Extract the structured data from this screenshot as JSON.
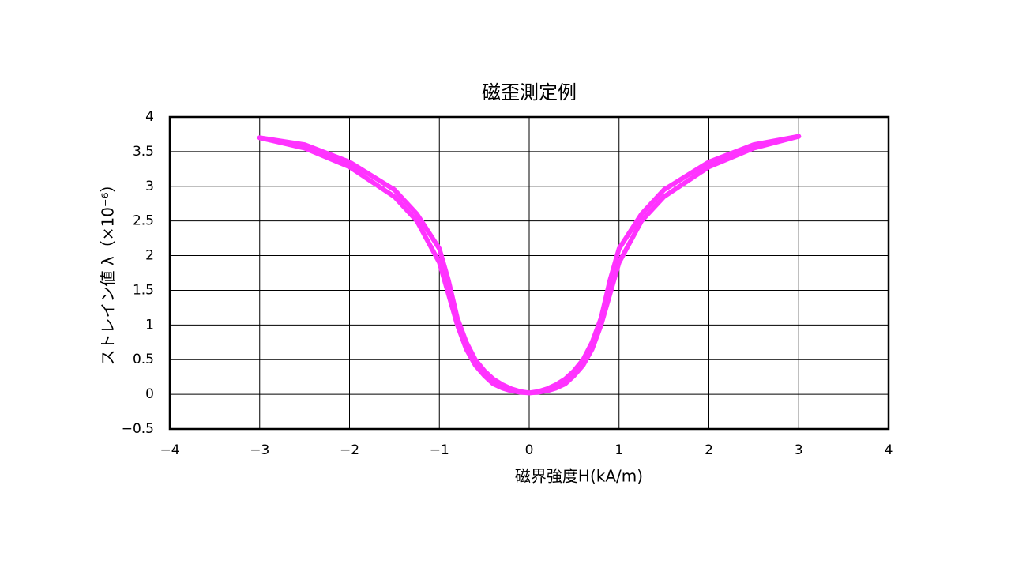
{
  "chart_data": {
    "type": "line",
    "title": "磁歪測定例",
    "x_label": "磁界強度H(kA/m)",
    "y_label": "ストレイン値 λ（×10⁻⁶）",
    "x": [
      -3,
      -2.5,
      -2,
      -1.5,
      -1.25,
      -1,
      -0.9,
      -0.8,
      -0.7,
      -0.6,
      -0.5,
      -0.4,
      -0.3,
      -0.2,
      -0.1,
      0,
      0.1,
      0.2,
      0.3,
      0.4,
      0.5,
      0.6,
      0.7,
      0.8,
      0.9,
      1,
      1.25,
      1.5,
      2,
      2.5,
      3
    ],
    "series": [
      {
        "color": "#ff33ff",
        "values": [
          3.7,
          3.55,
          3.28,
          2.85,
          2.5,
          1.9,
          1.45,
          1.0,
          0.65,
          0.42,
          0.27,
          0.15,
          0.09,
          0.05,
          0.03,
          0.02,
          0.04,
          0.08,
          0.14,
          0.22,
          0.34,
          0.5,
          0.75,
          1.1,
          1.65,
          2.1,
          2.6,
          2.95,
          3.35,
          3.6,
          3.72
        ]
      },
      {
        "color": "#ff33ff",
        "values": [
          3.7,
          3.6,
          3.35,
          2.95,
          2.6,
          2.1,
          1.65,
          1.1,
          0.75,
          0.5,
          0.34,
          0.22,
          0.14,
          0.08,
          0.04,
          0.02,
          0.03,
          0.05,
          0.09,
          0.15,
          0.27,
          0.42,
          0.65,
          1.0,
          1.45,
          1.9,
          2.5,
          2.85,
          3.28,
          3.55,
          3.72
        ]
      }
    ],
    "xlim": [
      -4,
      4
    ],
    "xticks": [
      {
        "value": -4,
        "label": "−4"
      },
      {
        "value": -3,
        "label": "−3"
      },
      {
        "value": -2,
        "label": "−2"
      },
      {
        "value": -1,
        "label": "−1"
      },
      0,
      1,
      2,
      3,
      4
    ],
    "ylim": [
      -0.5,
      4
    ],
    "yticks": [
      {
        "value": -0.5,
        "label": "−0.5"
      },
      0,
      0.5,
      1,
      1.5,
      2,
      2.5,
      3,
      3.5,
      4
    ],
    "grid": true
  }
}
